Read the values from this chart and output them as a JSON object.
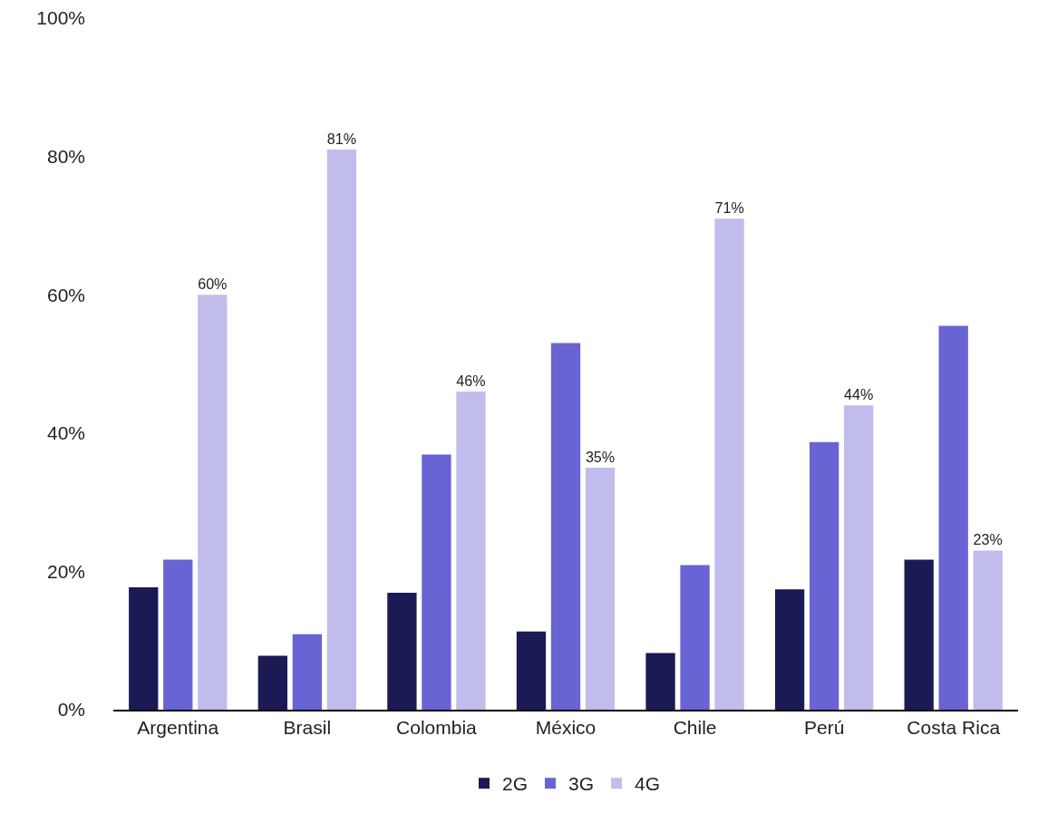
{
  "chart_data": {
    "type": "bar",
    "categories": [
      "Argentina",
      "Brasil",
      "Colombia",
      "México",
      "Chile",
      "Perú",
      "Costa Rica"
    ],
    "series": [
      {
        "name": "2G",
        "color": "#1c1a55",
        "values": [
          17.7,
          7.8,
          16.9,
          11.3,
          8.2,
          17.4,
          21.7
        ]
      },
      {
        "name": "3G",
        "color": "#6963d4",
        "values": [
          21.7,
          10.9,
          36.9,
          53,
          20.9,
          38.7,
          55.5
        ]
      },
      {
        "name": "4G",
        "color": "#c0bded",
        "values": [
          60,
          81,
          46,
          35,
          71,
          44,
          23
        ],
        "value_labels": [
          "60%",
          "81%",
          "46%",
          "35%",
          "71%",
          "44%",
          "23%"
        ]
      }
    ],
    "ylim": [
      0,
      100
    ],
    "yticks": [
      {
        "value": 0,
        "label": "0%"
      },
      {
        "value": 20,
        "label": "20%"
      },
      {
        "value": 40,
        "label": "40%"
      },
      {
        "value": 60,
        "label": "60%"
      },
      {
        "value": 80,
        "label": "80%"
      },
      {
        "value": 100,
        "label": "100%"
      }
    ],
    "grid": false,
    "legend": "bottom"
  }
}
